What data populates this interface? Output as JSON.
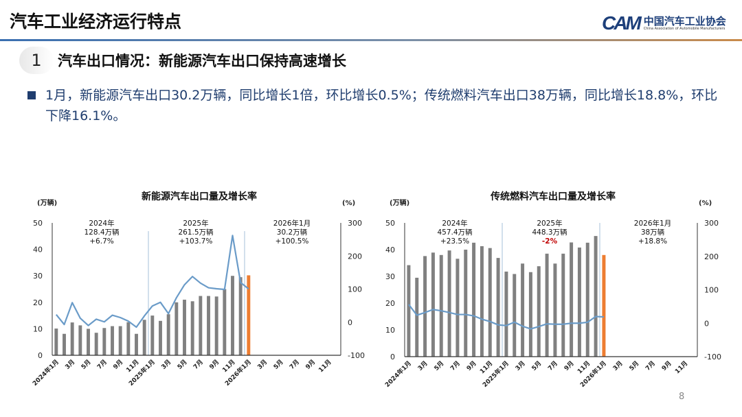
{
  "header": {
    "title": "汽车工业经济运行特点",
    "logo_cn": "中国汽车工业协会",
    "logo_en": "China Association of Automobile Manufacturers",
    "logo_mark": "CAM"
  },
  "section": {
    "number": "1",
    "title": "汽车出口情况：新能源汽车出口保持高速增长"
  },
  "bullet": "1月，新能源汽车出口30.2万辆，同比增长1倍，环比增长0.5%；传统燃料汽车出口38万辆，同比增长18.8%，环比下降16.1%。",
  "page_number": "8",
  "colors": {
    "bar": "#808080",
    "highlight_bar": "#ed7d31",
    "line": "#6a9bc8",
    "negative_text": "#c00000",
    "title_text": "#1f3d6e"
  },
  "chart_data": [
    {
      "type": "bar+line",
      "title": "新能源汽车出口量及增长率",
      "ylabel_left": "(万辆)",
      "ylabel_right": "(%)",
      "ylim_left": [
        0,
        50
      ],
      "ylim_right": [
        -100,
        300
      ],
      "yticks_left": [
        "0",
        "10",
        "20",
        "30",
        "40",
        "50"
      ],
      "yticks_right": [
        "-100",
        "0",
        "100",
        "200",
        "300"
      ],
      "xtick_labels": [
        "2024年1月",
        "3月",
        "5月",
        "7月",
        "9月",
        "11月",
        "2025年1月",
        "3月",
        "5月",
        "7月",
        "9月",
        "11月",
        "2026年1月",
        "3月",
        "5月",
        "7月",
        "9月",
        "11月"
      ],
      "months_total": 36,
      "bars": [
        10.1,
        8.1,
        12.4,
        11.3,
        10.0,
        8.5,
        10.3,
        11.0,
        11.0,
        12.5,
        8.1,
        13.4,
        15.0,
        13.0,
        15.5,
        20.0,
        21.0,
        20.4,
        22.4,
        22.4,
        22.2,
        25.0,
        30.0,
        29.5,
        30.2
      ],
      "growth": [
        23,
        -7,
        59,
        12,
        -10,
        9,
        1,
        21,
        14,
        3,
        -15,
        19,
        49,
        60,
        26,
        74,
        113,
        138,
        118,
        104,
        101,
        99,
        262,
        120,
        100.5
      ],
      "annotations": [
        {
          "lines": [
            "2024年",
            "128.4万辆",
            "+6.7%"
          ]
        },
        {
          "lines": [
            "2025年",
            "261.5万辆",
            "+103.7%"
          ]
        },
        {
          "lines": [
            "2026年1月",
            "30.2万辆",
            "+100.5%"
          ]
        }
      ]
    },
    {
      "type": "bar+line",
      "title": "传统燃料汽车出口量及增长率",
      "ylabel_left": "(万辆)",
      "ylabel_right": "(%)",
      "ylim_left": [
        0,
        50
      ],
      "ylim_right": [
        -100,
        300
      ],
      "yticks_left": [
        "0",
        "10",
        "20",
        "30",
        "40",
        "50"
      ],
      "yticks_right": [
        "-100",
        "0",
        "100",
        "200",
        "300"
      ],
      "xtick_labels": [
        "2024年1月",
        "3月",
        "5月",
        "7月",
        "9月",
        "11月",
        "2025年1月",
        "3月",
        "5月",
        "7月",
        "9月",
        "11月",
        "2026年1月",
        "3月",
        "5月",
        "7月",
        "9月",
        "11月"
      ],
      "months_total": 36,
      "bars": [
        34.2,
        29.5,
        37.6,
        38.9,
        38.0,
        39.7,
        36.6,
        40.0,
        42.6,
        41.3,
        40.6,
        36.9,
        31.8,
        30.9,
        34.8,
        31.6,
        33.8,
        38.5,
        34.8,
        38.5,
        42.7,
        40.8,
        42.6,
        45.1,
        38.0
      ],
      "growth": [
        56,
        24,
        32,
        41,
        37,
        32,
        26,
        26,
        22,
        12,
        5,
        -5,
        -7,
        3,
        -9,
        -17,
        -10,
        -2,
        -3,
        -3,
        0,
        0,
        3,
        20,
        18.8
      ],
      "annotations": [
        {
          "lines": [
            "2024年",
            "457.4万辆",
            "+23.5%"
          ]
        },
        {
          "lines": [
            "2025年",
            "448.3万辆",
            "-2%"
          ],
          "negative": true
        },
        {
          "lines": [
            "2026年1月",
            "38万辆",
            "+18.8%"
          ]
        }
      ]
    }
  ]
}
